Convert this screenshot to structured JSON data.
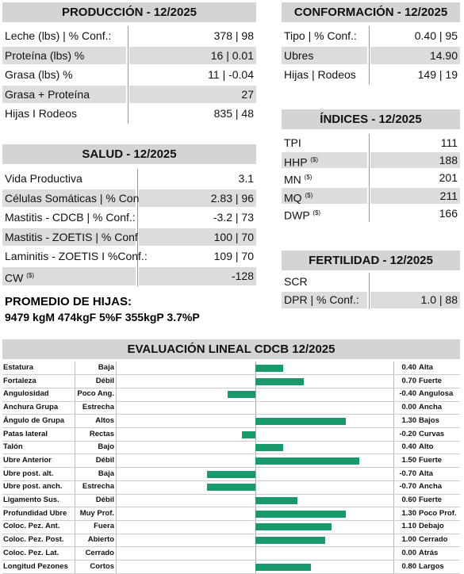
{
  "produccion": {
    "title": "PRODUCCIÓN - 12/2025",
    "rows": [
      {
        "label": "Leche (lbs) | % Conf.:",
        "value": "378 | 98"
      },
      {
        "label": "Proteína (lbs) %",
        "value": "16 | 0.01"
      },
      {
        "label": "Grasa (lbs) %",
        "value": "11 | -0.04"
      },
      {
        "label": "Grasa + Proteína",
        "value": "27"
      },
      {
        "label": "Hijas I Rodeos",
        "value": "835 | 48"
      }
    ]
  },
  "conformacion": {
    "title": "CONFORMACIÓN - 12/2025",
    "rows": [
      {
        "label": "Tipo | % Conf.:",
        "value": "0.40 | 95"
      },
      {
        "label": "Ubres",
        "value": "14.90"
      },
      {
        "label": "Hijas | Rodeos",
        "value": "149 | 19"
      }
    ]
  },
  "indices": {
    "title": "ÍNDICES - 12/2025",
    "rows": [
      {
        "label": "TPI",
        "value": "111"
      },
      {
        "label": "HHP",
        "sup": "($)",
        "value": "188"
      },
      {
        "label": "MN",
        "sup": "($)",
        "value": "201"
      },
      {
        "label": "MQ",
        "sup": "($)",
        "value": "211"
      },
      {
        "label": "DWP",
        "sup": "($)",
        "value": "166"
      }
    ]
  },
  "salud": {
    "title": "SALUD - 12/2025",
    "rows": [
      {
        "label": "Vida Productiva",
        "value": "3.1"
      },
      {
        "label": "Células Somáticas | % Conf.:",
        "value": "2.83 | 96"
      },
      {
        "label": "Mastitis - CDCB | % Conf.:",
        "value": "-3.2 | 73"
      },
      {
        "label": "Mastitis - ZOETIS | % Conf.:",
        "value": "100 | 70"
      },
      {
        "label": "Laminitis - ZOETIS I %Conf.:",
        "value": "109 | 70"
      },
      {
        "label": "CW",
        "sup": "($)",
        "value": "-128"
      }
    ]
  },
  "fertilidad": {
    "title": "FERTILIDAD - 12/2025",
    "rows": [
      {
        "label": "SCR"
      },
      {
        "label": "DPR | % Conf.:",
        "value": "1.0 | 88"
      }
    ]
  },
  "promedio_hijas": {
    "title": "PROMEDIO DE HIJAS:",
    "text": "9479 kgM 474kgF 5%F 355kgP 3.7%P"
  },
  "chart_data": {
    "type": "bar",
    "orientation": "horizontal",
    "title": "EVALUACIÓN LINEAL CDCB 12/2025",
    "categories": [
      "Estatura",
      "Fortaleza",
      "Angulosidad",
      "Anchura Grupa",
      "Ángulo de Grupa",
      "Patas lateral",
      "Talón",
      "Ubre Anterior",
      "Ubre post. alt.",
      "Ubre post. anch.",
      "Ligamento Sus.",
      "Profundidad Ubre",
      "Coloc. Pez. Ant.",
      "Coloc. Pez. Post.",
      "Coloc. Pez. Lat.",
      "Longitud Pezones"
    ],
    "low_labels": [
      "Baja",
      "Débil",
      "Poco Ang.",
      "Estrecha",
      "Altos",
      "Rectas",
      "Bajo",
      "Débil",
      "Baja",
      "Estrecha",
      "Débil",
      "Muy Prof.",
      "Fuera",
      "Abierto",
      "Cerrado",
      "Cortos"
    ],
    "high_labels": [
      "Alta",
      "Fuerte",
      "Angulosa",
      "Ancha",
      "Bajos",
      "Curvas",
      "Alto",
      "Fuerte",
      "Alta",
      "Ancha",
      "Fuerte",
      "Poco Prof.",
      "Debajo",
      "Cerrado",
      "Atrás",
      "Largos"
    ],
    "values": [
      0.4,
      0.7,
      -0.4,
      0,
      1.3,
      -0.2,
      0.4,
      1.5,
      -0.7,
      -0.7,
      0.6,
      1.3,
      1.1,
      1,
      0,
      0.8
    ],
    "value_labels": [
      "0.40",
      "0.70",
      "-0.40",
      "0.00",
      "1.30",
      "-0.20",
      "0.40",
      "1.50",
      "-0.70",
      "-0.70",
      "0.60",
      "1.30",
      "1.10",
      "1.00",
      "0.00",
      "0.80"
    ],
    "xlim": [
      -2,
      2
    ],
    "color": "#1a9a6a"
  }
}
